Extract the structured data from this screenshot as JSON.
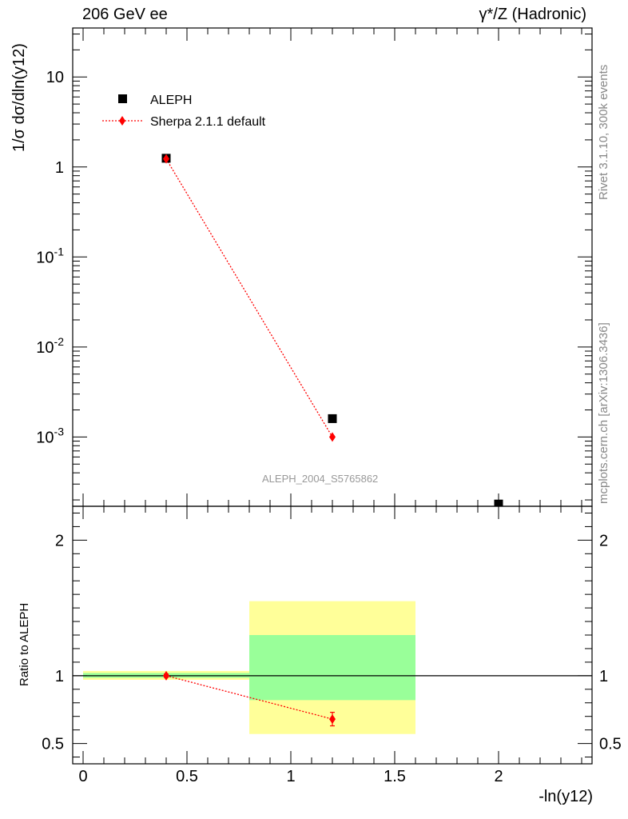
{
  "header": {
    "left": "206 GeV ee",
    "right_main": "γ*/Z",
    "right_suffix": " (Hadronic)"
  },
  "side_labels": {
    "rivet": "Rivet 3.1.10,  300k events",
    "mcplots": "mcplots.cern.ch [arXiv:1306.3436]"
  },
  "chart_data": [
    {
      "type": "scatter",
      "panel": "main",
      "title": "",
      "ylabel": "1/σ  dσ/dln(y12)",
      "yscale": "log",
      "ylim": [
        0.00017,
        35
      ],
      "xlim": [
        -0.05,
        2.45
      ],
      "analysis_label": "ALEPH_2004_S5765862",
      "y_tick_labels": [
        "10^-3",
        "10^-2",
        "10^-1",
        "1",
        "10"
      ],
      "legend": [
        "ALEPH",
        "Sherpa 2.1.1 default"
      ],
      "series": [
        {
          "name": "ALEPH",
          "marker": "square",
          "color": "#000000",
          "x": [
            0.4,
            1.2,
            2.0
          ],
          "y": [
            1.25,
            0.0016,
            0.00018
          ]
        },
        {
          "name": "Sherpa 2.1.1 default",
          "marker": "diamond",
          "color": "#ff0000",
          "line": "dotted",
          "x": [
            0.4,
            1.2
          ],
          "y": [
            1.23,
            0.001
          ]
        }
      ]
    },
    {
      "type": "scatter",
      "panel": "ratio",
      "ylabel": "Ratio to ALEPH",
      "xlabel": "-ln(y12)",
      "ylim": [
        0.35,
        2.25
      ],
      "xlim": [
        -0.05,
        2.45
      ],
      "x_tick_labels": [
        "0",
        "0.5",
        "1",
        "1.5",
        "2"
      ],
      "y_tick_labels": [
        "0.5",
        "1",
        "2"
      ],
      "bands": [
        {
          "x": [
            0.0,
            0.8
          ],
          "inner": [
            0.985,
            1.02
          ],
          "outer": [
            0.97,
            1.035
          ]
        },
        {
          "x": [
            0.8,
            1.6
          ],
          "inner": [
            0.82,
            1.3
          ],
          "outer": [
            0.57,
            1.55
          ]
        }
      ],
      "band_colors": {
        "inner": "#99ff99",
        "outer": "#ffff99"
      },
      "series": [
        {
          "name": "Sherpa 2.1.1 default",
          "color": "#ff0000",
          "x": [
            0.4,
            1.2
          ],
          "y": [
            1.0,
            0.68
          ],
          "yerr": [
            0.012,
            0.05
          ]
        }
      ]
    }
  ]
}
